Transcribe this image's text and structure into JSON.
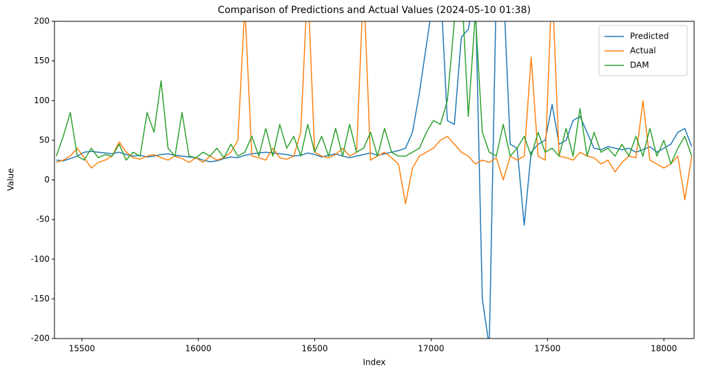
{
  "chart_data": {
    "type": "line",
    "title": "Comparison of Predictions and Actual Values (2024-05-10 01:38)",
    "x_label": "Index",
    "y_label": "Value",
    "x": [
      15390,
      15420,
      15450,
      15480,
      15510,
      15540,
      15570,
      15600,
      15630,
      15660,
      15690,
      15720,
      15750,
      15780,
      15810,
      15840,
      15870,
      15900,
      15930,
      15960,
      15990,
      16020,
      16050,
      16080,
      16110,
      16140,
      16170,
      16200,
      16230,
      16260,
      16290,
      16320,
      16350,
      16380,
      16410,
      16440,
      16470,
      16500,
      16530,
      16560,
      16590,
      16620,
      16650,
      16680,
      16710,
      16740,
      16770,
      16800,
      16830,
      16860,
      16890,
      16920,
      16950,
      16980,
      17010,
      17040,
      17070,
      17100,
      17130,
      17160,
      17190,
      17220,
      17250,
      17280,
      17310,
      17340,
      17370,
      17400,
      17430,
      17460,
      17490,
      17520,
      17550,
      17580,
      17610,
      17640,
      17670,
      17700,
      17730,
      17760,
      17790,
      17820,
      17850,
      17880,
      17910,
      17940,
      17970,
      18000,
      18030,
      18060,
      18090,
      18120
    ],
    "series": [
      {
        "name": "Predicted",
        "color": "#1f77b4",
        "values": [
          25,
          24,
          27,
          30,
          35,
          36,
          35,
          34,
          33,
          35,
          32,
          30,
          31,
          29,
          30,
          32,
          33,
          31,
          30,
          29,
          28,
          25,
          23,
          24,
          27,
          29,
          28,
          31,
          33,
          34,
          35,
          34,
          33,
          32,
          30,
          31,
          34,
          32,
          29,
          31,
          33,
          30,
          28,
          30,
          32,
          34,
          31,
          33,
          35,
          37,
          40,
          60,
          110,
          170,
          230,
          250,
          75,
          70,
          180,
          190,
          240,
          -150,
          -210,
          240,
          250,
          45,
          40,
          -57,
          35,
          45,
          50,
          95,
          45,
          50,
          75,
          80,
          60,
          40,
          38,
          42,
          40,
          38,
          40,
          35,
          38,
          42,
          35,
          40,
          45,
          60,
          65,
          42
        ]
      },
      {
        "name": "Actual",
        "color": "#ff7f0e",
        "values": [
          22,
          25,
          30,
          40,
          28,
          15,
          22,
          25,
          30,
          48,
          35,
          28,
          26,
          30,
          32,
          28,
          25,
          30,
          27,
          22,
          28,
          22,
          30,
          25,
          28,
          35,
          50,
          220,
          30,
          28,
          25,
          40,
          28,
          26,
          30,
          60,
          250,
          35,
          30,
          28,
          32,
          40,
          30,
          35,
          250,
          25,
          30,
          35,
          28,
          20,
          -30,
          15,
          30,
          35,
          40,
          50,
          55,
          45,
          35,
          30,
          20,
          25,
          22,
          28,
          0,
          30,
          25,
          30,
          155,
          30,
          25,
          250,
          30,
          28,
          25,
          35,
          30,
          28,
          20,
          25,
          10,
          22,
          30,
          28,
          100,
          25,
          20,
          15,
          20,
          30,
          -25,
          30
        ]
      },
      {
        "name": "DAM",
        "color": "#2ca02c",
        "values": [
          30,
          55,
          85,
          30,
          25,
          40,
          28,
          32,
          30,
          45,
          25,
          35,
          30,
          85,
          60,
          125,
          40,
          30,
          85,
          30,
          28,
          35,
          30,
          40,
          28,
          45,
          30,
          35,
          55,
          30,
          65,
          30,
          70,
          40,
          55,
          30,
          70,
          35,
          55,
          30,
          65,
          30,
          70,
          35,
          40,
          60,
          30,
          65,
          35,
          30,
          30,
          35,
          40,
          60,
          75,
          70,
          100,
          200,
          250,
          80,
          210,
          60,
          35,
          30,
          70,
          30,
          40,
          55,
          30,
          60,
          35,
          40,
          30,
          65,
          30,
          90,
          30,
          60,
          35,
          40,
          30,
          45,
          30,
          55,
          30,
          65,
          30,
          50,
          20,
          40,
          55,
          30
        ]
      }
    ],
    "xlim": [
      15382,
      18130
    ],
    "xticks": [
      15500,
      16000,
      16500,
      17000,
      17500,
      18000
    ],
    "ylim": [
      -200,
      200
    ],
    "yticks": [
      -200,
      -150,
      -100,
      -50,
      0,
      50,
      100,
      150,
      200
    ],
    "legend": "upper right"
  }
}
